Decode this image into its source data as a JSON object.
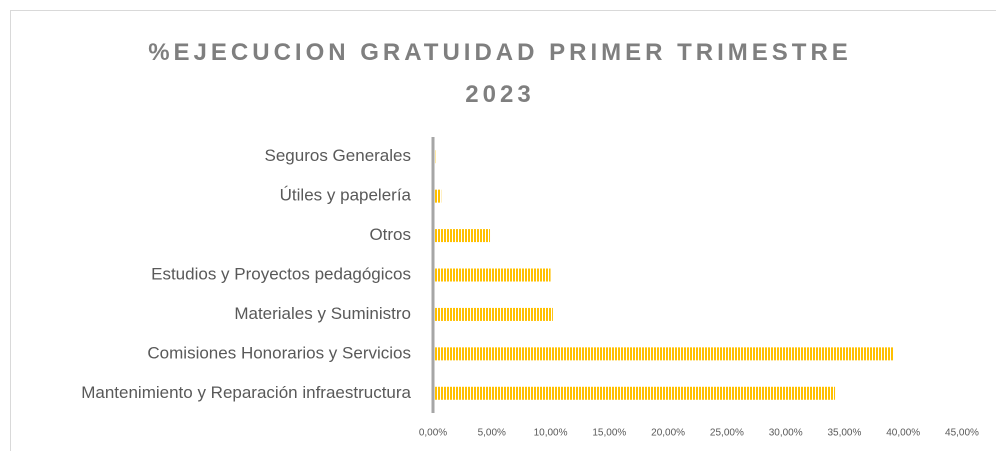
{
  "chart_data": {
    "type": "barh",
    "title": "%EJECUCION GRATUIDAD PRIMER TRIMESTRE 2023",
    "categories": [
      "Seguros Generales",
      "Útiles y papelería",
      "Otros",
      "Estudios y Proyectos pedagógicos",
      "Materiales y Suministro",
      "Comisiones Honorarios y Servicios",
      "Mantenimiento y Reparación infraestructura"
    ],
    "values": [
      0.2,
      0.7,
      4.85,
      10.0,
      10.2,
      39.2,
      34.2
    ],
    "color": "#ffc000",
    "xlim": [
      0,
      45
    ],
    "xticks": [
      {
        "value": 0,
        "label": "0,00%"
      },
      {
        "value": 5,
        "label": "5,00%"
      },
      {
        "value": 10,
        "label": "10,00%"
      },
      {
        "value": 15,
        "label": "15,00%"
      },
      {
        "value": 20,
        "label": "20,00%"
      },
      {
        "value": 25,
        "label": "25,00%"
      },
      {
        "value": 30,
        "label": "30,00%"
      },
      {
        "value": 35,
        "label": "35,00%"
      },
      {
        "value": 40,
        "label": "40,00%"
      },
      {
        "value": 45,
        "label": "45,00%"
      }
    ],
    "grid": false
  }
}
